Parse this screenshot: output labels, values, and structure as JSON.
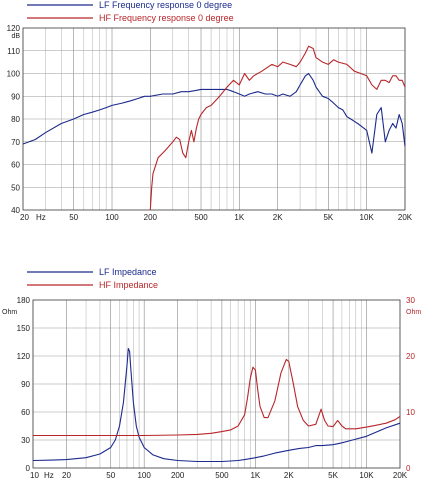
{
  "chart_data": [
    {
      "type": "line",
      "x_scale": "log",
      "xlim": [
        20,
        20000
      ],
      "ylim": [
        40,
        120
      ],
      "y_unit": "dB",
      "legend_position": "top-left",
      "grid": true,
      "x_ticks": [
        {
          "v": 20,
          "label": "20"
        },
        {
          "v": 50,
          "label": "50"
        },
        {
          "v": 100,
          "label": "100"
        },
        {
          "v": 200,
          "label": "200"
        },
        {
          "v": 500,
          "label": "500"
        },
        {
          "v": 1000,
          "label": "1K"
        },
        {
          "v": 2000,
          "label": "2K"
        },
        {
          "v": 5000,
          "label": "5K"
        },
        {
          "v": 10000,
          "label": "10K"
        },
        {
          "v": 20000,
          "label": "20K"
        }
      ],
      "x_unit": "Hz",
      "y_ticks": [
        40,
        50,
        60,
        70,
        80,
        90,
        100,
        110,
        120
      ],
      "series": [
        {
          "name": "LF Frequency response 0 degree",
          "color": "#1c2a8c",
          "x": [
            20,
            25,
            30,
            40,
            50,
            60,
            70,
            80,
            90,
            100,
            120,
            140,
            160,
            180,
            200,
            250,
            300,
            350,
            400,
            450,
            500,
            600,
            700,
            800,
            900,
            1000,
            1100,
            1200,
            1400,
            1600,
            1800,
            2000,
            2200,
            2500,
            2800,
            3000,
            3300,
            3500,
            3800,
            4000,
            4500,
            5000,
            5500,
            6000,
            6500,
            7000,
            7500,
            8000,
            8500,
            9000,
            10000,
            11000,
            12000,
            13000,
            14000,
            15000,
            16000,
            17000,
            18000,
            19000,
            20000
          ],
          "y": [
            69,
            71,
            74,
            78,
            80,
            82,
            83,
            84,
            85,
            86,
            87,
            88,
            89,
            90,
            90,
            91,
            91,
            92,
            92,
            92.5,
            93,
            93,
            93,
            93,
            92,
            91,
            90,
            91,
            92,
            91,
            91,
            90,
            91,
            90,
            92,
            95,
            99,
            100,
            97,
            94,
            90,
            89,
            87,
            85,
            84,
            81,
            80,
            79,
            78,
            77,
            75,
            65,
            82,
            85,
            70,
            75,
            78,
            76,
            82,
            78,
            68
          ]
        },
        {
          "name": "HF Frequency response 0 degree",
          "color": "#b8262a",
          "x": [
            200,
            205,
            210,
            230,
            250,
            270,
            300,
            320,
            340,
            360,
            380,
            400,
            420,
            440,
            460,
            480,
            500,
            550,
            600,
            650,
            700,
            800,
            900,
            1000,
            1100,
            1200,
            1300,
            1500,
            1800,
            2000,
            2200,
            2500,
            2800,
            3000,
            3300,
            3500,
            3800,
            4000,
            4500,
            5000,
            5500,
            6000,
            7000,
            8000,
            9000,
            10000,
            11000,
            12000,
            13000,
            14000,
            15000,
            16000,
            17000,
            18000,
            19000,
            20000
          ],
          "y": [
            40,
            50,
            56,
            63,
            65,
            67,
            70,
            72,
            71,
            65,
            63,
            70,
            75,
            70,
            76,
            80,
            82,
            85,
            86,
            88,
            90,
            94,
            97,
            95,
            100,
            97,
            99,
            101,
            104,
            103,
            105,
            104,
            103,
            105,
            109,
            112,
            111,
            107,
            105,
            104,
            106,
            105,
            104,
            101,
            100,
            99,
            95,
            93,
            97,
            97,
            96,
            99,
            99,
            97,
            97,
            94
          ]
        }
      ]
    },
    {
      "type": "line",
      "x_scale": "log",
      "xlim": [
        10,
        20000
      ],
      "ylim": [
        0,
        180
      ],
      "y2lim": [
        0,
        30
      ],
      "y_unit": "Ohm",
      "y2_unit": "Ohm",
      "legend_position": "top-left",
      "grid": true,
      "x_ticks": [
        {
          "v": 10,
          "label": "10"
        },
        {
          "v": 20,
          "label": "20"
        },
        {
          "v": 50,
          "label": "50"
        },
        {
          "v": 100,
          "label": "100"
        },
        {
          "v": 200,
          "label": "200"
        },
        {
          "v": 500,
          "label": "500"
        },
        {
          "v": 1000,
          "label": "1K"
        },
        {
          "v": 2000,
          "label": "2K"
        },
        {
          "v": 5000,
          "label": "5K"
        },
        {
          "v": 10000,
          "label": "10K"
        },
        {
          "v": 20000,
          "label": "20K"
        }
      ],
      "x_unit": "Hz",
      "y_ticks": [
        0,
        30,
        60,
        90,
        120,
        150,
        180
      ],
      "y2_ticks": [
        0,
        10,
        20,
        30
      ],
      "series": [
        {
          "name": "LF Impedance",
          "color": "#1c2a8c",
          "axis": "left",
          "x": [
            10,
            15,
            20,
            30,
            40,
            50,
            55,
            60,
            65,
            70,
            72,
            74,
            76,
            80,
            85,
            90,
            100,
            120,
            150,
            200,
            300,
            400,
            500,
            600,
            700,
            800,
            1000,
            1200,
            1500,
            2000,
            2500,
            3000,
            3500,
            4000,
            5000,
            6000,
            7000,
            8000,
            10000,
            12000,
            15000,
            20000
          ],
          "y": [
            8,
            8.5,
            9,
            11,
            15,
            22,
            30,
            45,
            70,
            110,
            128,
            125,
            105,
            70,
            45,
            33,
            22,
            14,
            10,
            8,
            7,
            7,
            7,
            7.5,
            8,
            9,
            11,
            13,
            16,
            19,
            21,
            22,
            24,
            24,
            25,
            27,
            29,
            31,
            34,
            38,
            43,
            48
          ]
        },
        {
          "name": "HF Impedance",
          "color": "#b8262a",
          "axis": "right",
          "x": [
            10,
            100,
            200,
            300,
            400,
            500,
            600,
            700,
            800,
            850,
            900,
            950,
            1000,
            1050,
            1100,
            1200,
            1300,
            1500,
            1700,
            1900,
            2000,
            2200,
            2400,
            2700,
            3000,
            3500,
            3900,
            4200,
            4500,
            5000,
            5500,
            6000,
            6500,
            7000,
            8000,
            10000,
            12000,
            15000,
            18000,
            20000
          ],
          "y": [
            5.8,
            5.8,
            5.9,
            6.0,
            6.2,
            6.5,
            6.8,
            7.5,
            9.5,
            12.5,
            16,
            18,
            17.5,
            14,
            11,
            9,
            9,
            12,
            17,
            19.4,
            19,
            15,
            11,
            8.5,
            7.5,
            7.8,
            10.5,
            8.5,
            7.5,
            7.4,
            8.5,
            7.5,
            7,
            7,
            7,
            7.3,
            7.6,
            8,
            8.6,
            9.2
          ]
        }
      ]
    }
  ]
}
